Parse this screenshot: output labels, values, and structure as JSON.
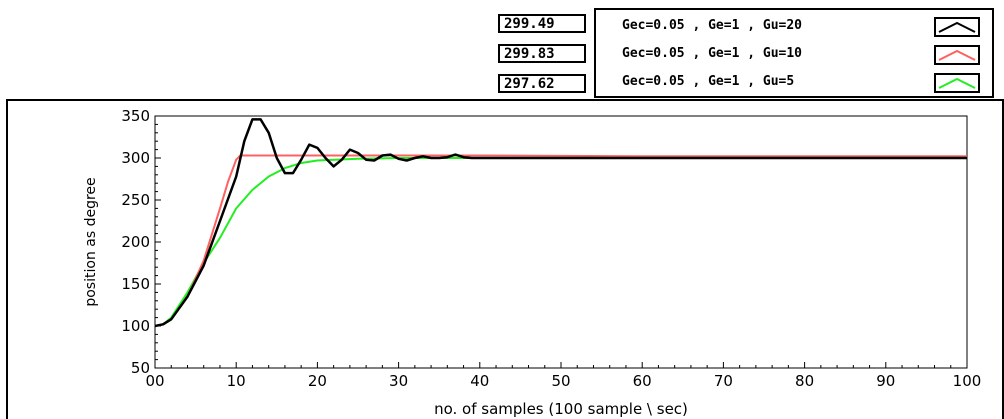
{
  "readouts": [
    "299.49",
    "299.83",
    "297.62"
  ],
  "legend": [
    {
      "label": "Gec=0.05 , Ge=1 , Gu=20",
      "color": "#000000"
    },
    {
      "label": "Gec=0.05 , Ge=1 , Gu=10",
      "color": "#ff6060"
    },
    {
      "label": "Gec=0.05 , Ge=1 , Gu=5",
      "color": "#22ee22"
    }
  ],
  "chart_data": {
    "type": "line",
    "xlabel": "no. of samples (100 sample \\ sec)",
    "ylabel": "position as degree",
    "xlim": [
      0,
      100
    ],
    "ylim": [
      50,
      350
    ],
    "x_ticks": [
      "00",
      "10",
      "20",
      "30",
      "40",
      "50",
      "60",
      "70",
      "80",
      "90",
      "100"
    ],
    "y_ticks": [
      "50",
      "100",
      "150",
      "200",
      "250",
      "300",
      "350"
    ],
    "grid": false,
    "series": [
      {
        "name": "Gec=0.05 , Ge=1 , Gu=20",
        "color": "#000000",
        "points": [
          [
            0,
            100
          ],
          [
            1,
            102
          ],
          [
            2,
            108
          ],
          [
            4,
            135
          ],
          [
            6,
            172
          ],
          [
            8,
            225
          ],
          [
            10,
            278
          ],
          [
            11,
            320
          ],
          [
            12,
            346
          ],
          [
            13,
            346
          ],
          [
            14,
            330
          ],
          [
            15,
            300
          ],
          [
            16,
            282
          ],
          [
            17,
            282
          ],
          [
            18,
            298
          ],
          [
            19,
            316
          ],
          [
            20,
            312
          ],
          [
            21,
            300
          ],
          [
            22,
            290
          ],
          [
            23,
            298
          ],
          [
            24,
            310
          ],
          [
            25,
            306
          ],
          [
            26,
            298
          ],
          [
            27,
            297
          ],
          [
            28,
            303
          ],
          [
            29,
            304
          ],
          [
            30,
            299
          ],
          [
            31,
            297
          ],
          [
            32,
            300
          ],
          [
            33,
            302
          ],
          [
            34,
            300
          ],
          [
            35,
            300
          ],
          [
            36,
            301
          ],
          [
            37,
            304
          ],
          [
            38,
            301
          ],
          [
            39,
            300
          ],
          [
            40,
            300
          ],
          [
            50,
            300
          ],
          [
            100,
            300
          ]
        ]
      },
      {
        "name": "Gec=0.05 , Ge=1 , Gu=10",
        "color": "#ff6060",
        "points": [
          [
            0,
            100
          ],
          [
            1,
            102
          ],
          [
            2,
            108
          ],
          [
            4,
            135
          ],
          [
            6,
            178
          ],
          [
            8,
            240
          ],
          [
            9,
            272
          ],
          [
            10,
            298
          ],
          [
            10.5,
            303
          ],
          [
            11,
            303
          ],
          [
            20,
            303
          ],
          [
            40,
            303
          ],
          [
            60,
            302
          ],
          [
            80,
            302
          ],
          [
            100,
            302
          ]
        ]
      },
      {
        "name": "Gec=0.05 , Ge=1 , Gu=5",
        "color": "#22ee22",
        "points": [
          [
            0,
            100
          ],
          [
            1,
            102
          ],
          [
            2,
            110
          ],
          [
            4,
            140
          ],
          [
            6,
            175
          ],
          [
            8,
            205
          ],
          [
            10,
            240
          ],
          [
            12,
            262
          ],
          [
            14,
            278
          ],
          [
            16,
            288
          ],
          [
            18,
            294
          ],
          [
            20,
            297
          ],
          [
            25,
            299
          ],
          [
            30,
            300
          ],
          [
            50,
            300
          ],
          [
            100,
            300
          ]
        ]
      }
    ]
  }
}
